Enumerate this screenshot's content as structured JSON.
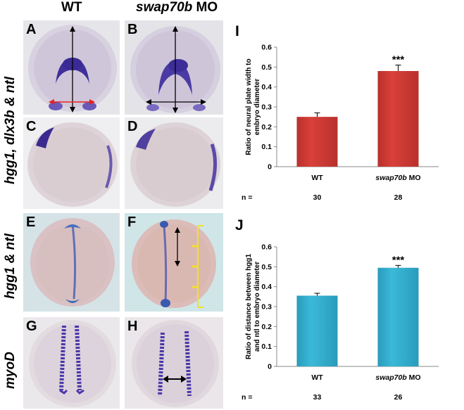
{
  "headers": {
    "wt": "WT",
    "mo_gene": "swap70b",
    "mo_suffix": " MO"
  },
  "row_labels": {
    "top": "hgg1, dlx3b & ntl",
    "middle": "hgg1 & ntl",
    "bottom": "myoD"
  },
  "panels": {
    "A": "A",
    "B": "B",
    "C": "C",
    "D": "D",
    "E": "E",
    "F": "F",
    "G": "G",
    "H": "H"
  },
  "colors": {
    "bar_red": "#d9403a",
    "bar_red_dark": "#b9302c",
    "bar_blue": "#3bb9d8",
    "bar_blue_dark": "#2a9bbb",
    "stain": "#4a3aa8",
    "arrow_red": "#e82020",
    "tick_yellow": "#f2e024"
  },
  "chart_data": [
    {
      "type": "bar",
      "letter": "I",
      "ylabel_lines": [
        "Ratio of neural plate width to",
        "embryo diameter"
      ],
      "categories": [
        "WT",
        "swap70b MO"
      ],
      "category_parts": [
        {
          "italic": "",
          "normal": "WT"
        },
        {
          "italic": "swap70b",
          "normal": " MO"
        }
      ],
      "values": [
        0.25,
        0.48
      ],
      "errors": [
        0.02,
        0.03
      ],
      "significance": [
        "",
        "***"
      ],
      "ylim": [
        0,
        0.6
      ],
      "yticks": [
        "0",
        "0.1",
        "0.2",
        "0.3",
        "0.4",
        "0.5",
        "0.6"
      ],
      "n_label": "n =",
      "n_values": [
        "30",
        "28"
      ]
    },
    {
      "type": "bar",
      "letter": "J",
      "ylabel_lines": [
        "Ratio of distance between hgg1",
        "and ntl to embryo diameter"
      ],
      "categories": [
        "WT",
        "swap70b MO"
      ],
      "category_parts": [
        {
          "italic": "",
          "normal": "WT"
        },
        {
          "italic": "swap70b",
          "normal": " MO"
        }
      ],
      "values": [
        0.355,
        0.495
      ],
      "errors": [
        0.012,
        0.012
      ],
      "significance": [
        "",
        "***"
      ],
      "ylim": [
        0,
        0.6
      ],
      "yticks": [
        "0",
        "0.1",
        "0.2",
        "0.3",
        "0.4",
        "0.5",
        "0.6"
      ],
      "n_label": "n =",
      "n_values": [
        "33",
        "26"
      ]
    }
  ]
}
